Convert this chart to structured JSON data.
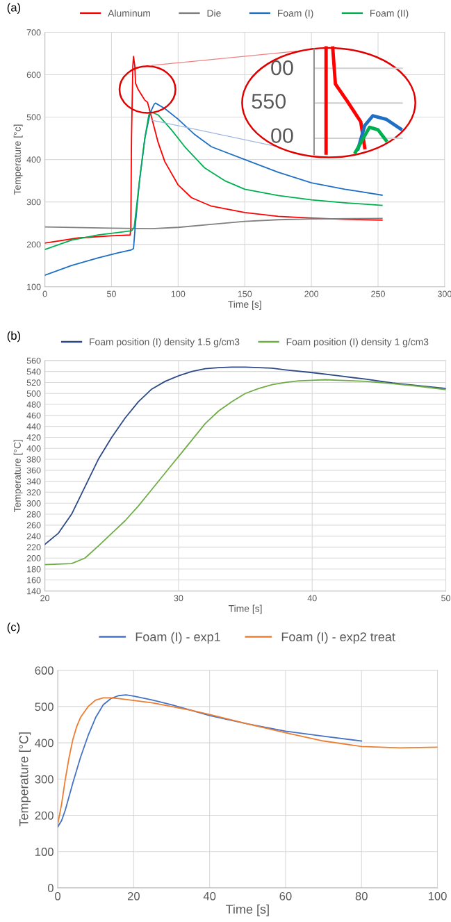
{
  "chart_data": [
    {
      "type": "line",
      "title": "(a)",
      "xlabel": "Time [s]",
      "ylabel": "Temperature [°c]",
      "xlim": [
        0,
        300
      ],
      "xticks": [
        0,
        50,
        100,
        150,
        200,
        250,
        300
      ],
      "ylim": [
        100,
        700
      ],
      "yticks": [
        100,
        200,
        300,
        400,
        500,
        600,
        700
      ],
      "grid": true,
      "legend": "top",
      "annotations": [
        "00",
        "550",
        "00"
      ],
      "series": [
        {
          "name": "Aluminum",
          "color": "#ff0000",
          "x": [
            0,
            25,
            50,
            64,
            64.5,
            65,
            66,
            66.5,
            67.5,
            68,
            70,
            73,
            75,
            77,
            80,
            85,
            90,
            100,
            110,
            125,
            150,
            175,
            200,
            225,
            253
          ],
          "values": [
            203,
            215,
            220,
            222,
            240,
            450,
            620,
            643,
            620,
            580,
            565,
            550,
            540,
            535,
            500,
            440,
            395,
            340,
            310,
            290,
            275,
            266,
            262,
            259,
            257
          ]
        },
        {
          "name": "Die",
          "color": "#808080",
          "x": [
            0,
            50,
            80,
            100,
            125,
            150,
            175,
            200,
            253
          ],
          "values": [
            241,
            238,
            237,
            240,
            247,
            254,
            258,
            260,
            261
          ]
        },
        {
          "name": "Foam (I)",
          "color": "#1f6fc5",
          "x": [
            0,
            20,
            40,
            55,
            65,
            66.5,
            68,
            71,
            75,
            79,
            82,
            83,
            90,
            100,
            112,
            125,
            150,
            175,
            200,
            225,
            253
          ],
          "values": [
            127,
            150,
            168,
            180,
            187,
            190,
            250,
            350,
            450,
            510,
            530,
            533,
            520,
            495,
            460,
            430,
            400,
            370,
            345,
            330,
            316
          ]
        },
        {
          "name": "Foam (II)",
          "color": "#00b050",
          "x": [
            0,
            20,
            40,
            55,
            65,
            67,
            71,
            75,
            78,
            80,
            85,
            95,
            105,
            120,
            135,
            150,
            175,
            200,
            225,
            253
          ],
          "values": [
            188,
            210,
            222,
            228,
            232,
            240,
            350,
            450,
            505,
            512,
            505,
            470,
            430,
            380,
            350,
            330,
            315,
            305,
            298,
            292
          ]
        }
      ]
    },
    {
      "type": "line",
      "title": "(b)",
      "xlabel": "Time [s]",
      "ylabel": "Temperature [°C]",
      "xlim": [
        20,
        50
      ],
      "xticks": [
        20,
        30,
        40,
        50
      ],
      "ylim": [
        140,
        560
      ],
      "yticks": [
        140,
        160,
        180,
        200,
        220,
        240,
        260,
        280,
        300,
        320,
        340,
        360,
        380,
        400,
        420,
        440,
        460,
        480,
        500,
        520,
        540,
        560
      ],
      "grid": true,
      "legend": "top",
      "series": [
        {
          "name": "Foam position (I) density 1.5 g/cm3",
          "color": "#2e4a86",
          "x": [
            20,
            21,
            22,
            23,
            24,
            25,
            26,
            27,
            28,
            29,
            30,
            31,
            32,
            33,
            34,
            35,
            36,
            37,
            38,
            40,
            42,
            44,
            46,
            48,
            50
          ],
          "values": [
            225,
            245,
            280,
            330,
            380,
            420,
            455,
            485,
            508,
            522,
            532,
            540,
            545,
            547,
            548,
            548,
            547,
            546,
            543,
            538,
            532,
            526,
            519,
            514,
            509
          ]
        },
        {
          "name": "Foam position (I) density 1 g/cm3",
          "color": "#70ad47",
          "x": [
            20,
            21,
            22,
            23,
            24,
            25,
            26,
            27,
            28,
            29,
            30,
            31,
            32,
            33,
            34,
            35,
            36,
            37,
            38,
            39,
            40,
            41,
            42,
            44,
            46,
            48,
            50
          ],
          "values": [
            188,
            189,
            190,
            200,
            222,
            245,
            268,
            295,
            325,
            355,
            385,
            415,
            445,
            468,
            485,
            500,
            509,
            516,
            520,
            523,
            524,
            525,
            524,
            522,
            518,
            513,
            507
          ]
        }
      ]
    },
    {
      "type": "line",
      "title": "(c)",
      "xlabel": "Time [s]",
      "ylabel": "Temperature [°C]",
      "xlim": [
        0,
        100
      ],
      "xticks": [
        0,
        20,
        40,
        60,
        80,
        100
      ],
      "ylim": [
        0,
        600
      ],
      "yticks": [
        0,
        100,
        200,
        300,
        400,
        500,
        600
      ],
      "grid": true,
      "legend": "top",
      "series": [
        {
          "name": "Foam (I) - exp1",
          "color": "#4472c4",
          "x": [
            0,
            1,
            2,
            4,
            6,
            8,
            10,
            12,
            14,
            16,
            18,
            20,
            25,
            30,
            35,
            40,
            50,
            60,
            70,
            80
          ],
          "values": [
            168,
            185,
            215,
            290,
            360,
            420,
            470,
            505,
            522,
            530,
            532,
            529,
            518,
            505,
            490,
            475,
            452,
            432,
            418,
            405
          ]
        },
        {
          "name": "Foam (I) - exp2 treat",
          "color": "#ed7d31",
          "x": [
            0,
            1,
            2,
            3,
            4,
            5,
            6,
            8,
            10,
            12,
            14,
            16,
            20,
            25,
            30,
            35,
            40,
            50,
            60,
            70,
            80,
            85,
            90,
            95,
            100
          ],
          "values": [
            175,
            230,
            300,
            360,
            410,
            445,
            470,
            500,
            518,
            524,
            524,
            522,
            517,
            510,
            500,
            490,
            478,
            452,
            428,
            405,
            390,
            388,
            386,
            387,
            388
          ]
        }
      ]
    }
  ]
}
